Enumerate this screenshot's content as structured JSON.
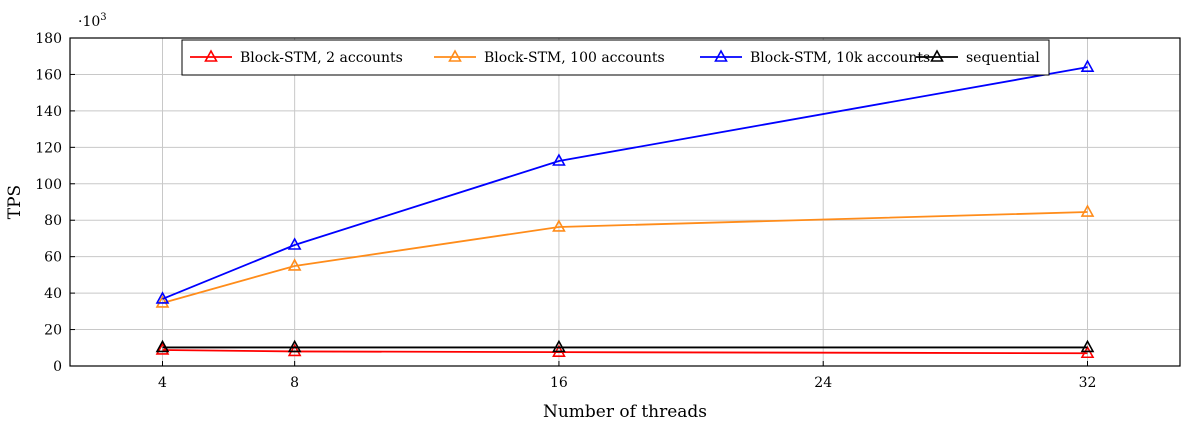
{
  "chart_data": {
    "type": "line",
    "xlabel": "Number of threads",
    "ylabel": "TPS",
    "y_multiplier": "·10",
    "y_multiplier_exp": "3",
    "xlim": [
      1.2,
      34.8
    ],
    "ylim": [
      0,
      180
    ],
    "x_ticks": [
      4,
      8,
      16,
      24,
      32
    ],
    "y_ticks": [
      0,
      20,
      40,
      60,
      80,
      100,
      120,
      140,
      160,
      180
    ],
    "grid": true,
    "legend_position": "top",
    "x": [
      4,
      8,
      16,
      32
    ],
    "series": [
      {
        "name": "Block-STM, 2 accounts",
        "color": "#ff0000",
        "marker": "triangle",
        "values": [
          8.8,
          8.0,
          7.6,
          7.0
        ]
      },
      {
        "name": "Block-STM, 100 accounts",
        "color": "#ff8c1a",
        "marker": "triangle",
        "values": [
          34.6,
          54.9,
          76.3,
          84.5
        ]
      },
      {
        "name": "Block-STM, 10k accounts",
        "color": "#0000ff",
        "marker": "triangle",
        "values": [
          36.8,
          66.4,
          112.5,
          164.0
        ]
      },
      {
        "name": "sequential",
        "color": "#000000",
        "marker": "triangle",
        "values": [
          10.2,
          10.2,
          10.2,
          10.2
        ]
      }
    ]
  }
}
